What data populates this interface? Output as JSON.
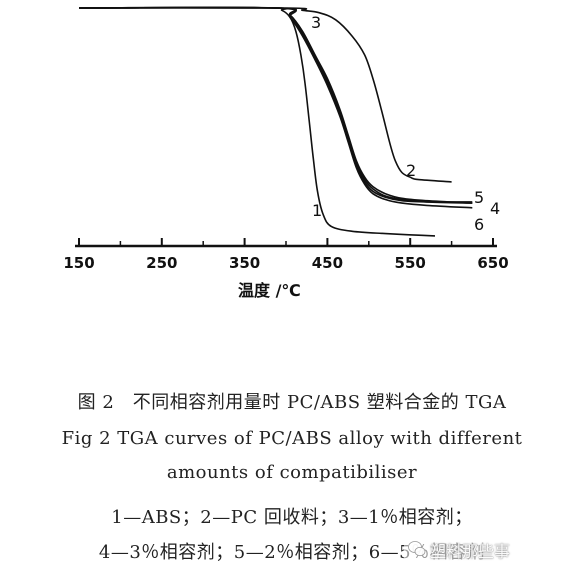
{
  "chart_data": {
    "type": "line",
    "xlabel": "温度 /℃",
    "ylabel": "",
    "xlim": [
      150,
      650
    ],
    "x_ticks": [
      150,
      250,
      350,
      450,
      550,
      650
    ],
    "ylim": [
      0,
      100
    ],
    "grid": false,
    "series": [
      {
        "name": "1",
        "x": [
          150,
          380,
          395,
          405,
          412,
          418,
          423,
          428,
          433,
          438,
          445,
          455,
          480,
          520,
          580
        ],
        "y": [
          100,
          100,
          99,
          96,
          90,
          80,
          68,
          52,
          36,
          22,
          12,
          7,
          5,
          4,
          3
        ]
      },
      {
        "name": "2",
        "x": [
          150,
          400,
          420,
          440,
          460,
          480,
          495,
          505,
          515,
          525,
          532,
          540,
          550,
          560,
          600
        ],
        "y": [
          100,
          100,
          99,
          98,
          95,
          88,
          80,
          70,
          57,
          43,
          35,
          30,
          28,
          27,
          26
        ]
      },
      {
        "name": "3",
        "x": [
          150,
          390,
          405,
          420,
          435,
          450,
          465,
          475,
          485,
          495,
          505,
          520,
          540,
          570,
          625
        ],
        "y": [
          100,
          100,
          97,
          90,
          80,
          70,
          57,
          46,
          35,
          28,
          24,
          21,
          19,
          18,
          17
        ]
      },
      {
        "name": "4",
        "x": [
          150,
          390,
          405,
          420,
          435,
          450,
          465,
          475,
          485,
          495,
          505,
          520,
          540,
          570,
          625
        ],
        "y": [
          100,
          100,
          97,
          90,
          80,
          69,
          56,
          45,
          34,
          27,
          23,
          20,
          18.5,
          17.5,
          17
        ]
      },
      {
        "name": "5",
        "x": [
          150,
          390,
          405,
          420,
          435,
          450,
          465,
          475,
          485,
          495,
          505,
          520,
          540,
          570,
          625
        ],
        "y": [
          100,
          100,
          97,
          89,
          79,
          68,
          55,
          44,
          33,
          26,
          22,
          19.5,
          18,
          17.5,
          17.5
        ]
      },
      {
        "name": "6",
        "x": [
          150,
          390,
          405,
          420,
          435,
          450,
          465,
          475,
          485,
          495,
          505,
          520,
          540,
          570,
          625
        ],
        "y": [
          100,
          100,
          96,
          88,
          78,
          67,
          54,
          43,
          32,
          25,
          21,
          18.5,
          17,
          16,
          15
        ]
      }
    ]
  },
  "caption": {
    "cn": "图 2　不同相容剂用量时 PC/ABS 塑料合金的 TGA",
    "en_line1": "Fig 2 TGA curves of PC/ABS alloy with different",
    "en_line2": "amounts of compatibiliser",
    "legend_line1": "1—ABS；2—PC 回收料；3—1％相容剂；",
    "legend_line2": "4—3％相容剂；5—2％相容剂；6—5％相容剂"
  },
  "watermark": {
    "text": "塑料那些事"
  }
}
